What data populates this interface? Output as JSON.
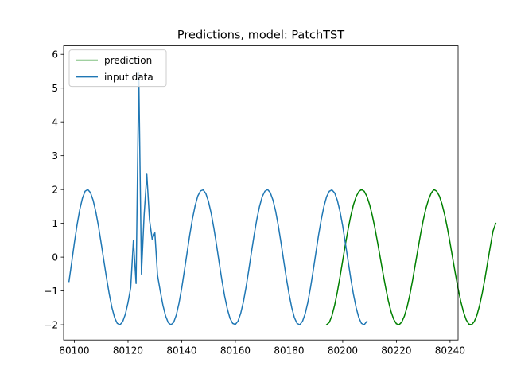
{
  "chart_data": {
    "type": "line",
    "title": "Predictions, model: PatchTST",
    "xlabel": "",
    "ylabel": "",
    "xlim": [
      80096,
      80243
    ],
    "ylim": [
      -2.45,
      6.25
    ],
    "xticks": [
      80100,
      80120,
      80140,
      80160,
      80180,
      80200,
      80220,
      80240
    ],
    "yticks": [
      -2,
      -1,
      0,
      1,
      2,
      3,
      4,
      5,
      6
    ],
    "grid": false,
    "legend": {
      "placement": "top-left",
      "entries": [
        "prediction",
        "input data"
      ]
    },
    "series": [
      {
        "name": "prediction",
        "color": "#008000",
        "x_start": 80194,
        "x_step": 1,
        "values": [
          -2.0,
          -1.93,
          -1.73,
          -1.42,
          -1.03,
          -0.58,
          -0.1,
          0.38,
          0.82,
          1.22,
          1.55,
          1.79,
          1.94,
          2.0,
          1.95,
          1.8,
          1.56,
          1.24,
          0.86,
          0.43,
          -0.02,
          -0.47,
          -0.9,
          -1.29,
          -1.61,
          -1.84,
          -1.97,
          -2.0,
          -1.92,
          -1.74,
          -1.47,
          -1.12,
          -0.7,
          -0.24,
          0.22,
          0.68,
          1.09,
          1.44,
          1.71,
          1.9,
          2.0,
          1.95,
          1.81,
          1.57,
          1.25,
          0.86,
          0.42,
          -0.04,
          -0.5,
          -0.93,
          -1.31,
          -1.62,
          -1.85,
          -1.98,
          -2.0,
          -1.91,
          -1.72,
          -1.43,
          -1.06,
          -0.63,
          -0.15,
          0.32,
          0.77,
          1.0
        ]
      },
      {
        "name": "input data",
        "color": "#1f77b4",
        "x_start": 80098,
        "x_step": 1,
        "values": [
          -0.72,
          -0.16,
          0.42,
          0.95,
          1.4,
          1.74,
          1.95,
          2.0,
          1.91,
          1.68,
          1.34,
          0.91,
          0.41,
          -0.11,
          -0.62,
          -1.09,
          -1.49,
          -1.79,
          -1.96,
          -2.0,
          -1.91,
          -1.69,
          -1.34,
          -0.9,
          0.5,
          -0.78,
          5.45,
          -0.5,
          1.25,
          2.45,
          1.1,
          0.53,
          0.72,
          -0.54,
          -1.0,
          -1.42,
          -1.74,
          -1.94,
          -2.0,
          -1.93,
          -1.71,
          -1.36,
          -0.92,
          -0.4,
          0.13,
          0.66,
          1.13,
          1.52,
          1.81,
          1.96,
          1.99,
          1.88,
          1.64,
          1.29,
          0.85,
          0.35,
          -0.18,
          -0.69,
          -1.15,
          -1.53,
          -1.81,
          -1.96,
          -1.99,
          -1.89,
          -1.66,
          -1.32,
          -0.88,
          -0.38,
          0.15,
          0.66,
          1.12,
          1.5,
          1.79,
          1.95,
          2.0,
          1.91,
          1.69,
          1.36,
          0.93,
          0.43,
          -0.1,
          -0.62,
          -1.09,
          -1.49,
          -1.79,
          -1.96,
          -2.0,
          -1.9,
          -1.68,
          -1.34,
          -0.9,
          -0.4,
          0.13,
          0.65,
          1.11,
          1.5,
          1.79,
          1.95,
          1.99,
          1.9,
          1.68,
          1.35,
          0.92,
          0.41,
          -0.11,
          -0.63,
          -1.1,
          -1.49,
          -1.79,
          -1.96,
          -2.0,
          -1.9
        ]
      }
    ]
  }
}
